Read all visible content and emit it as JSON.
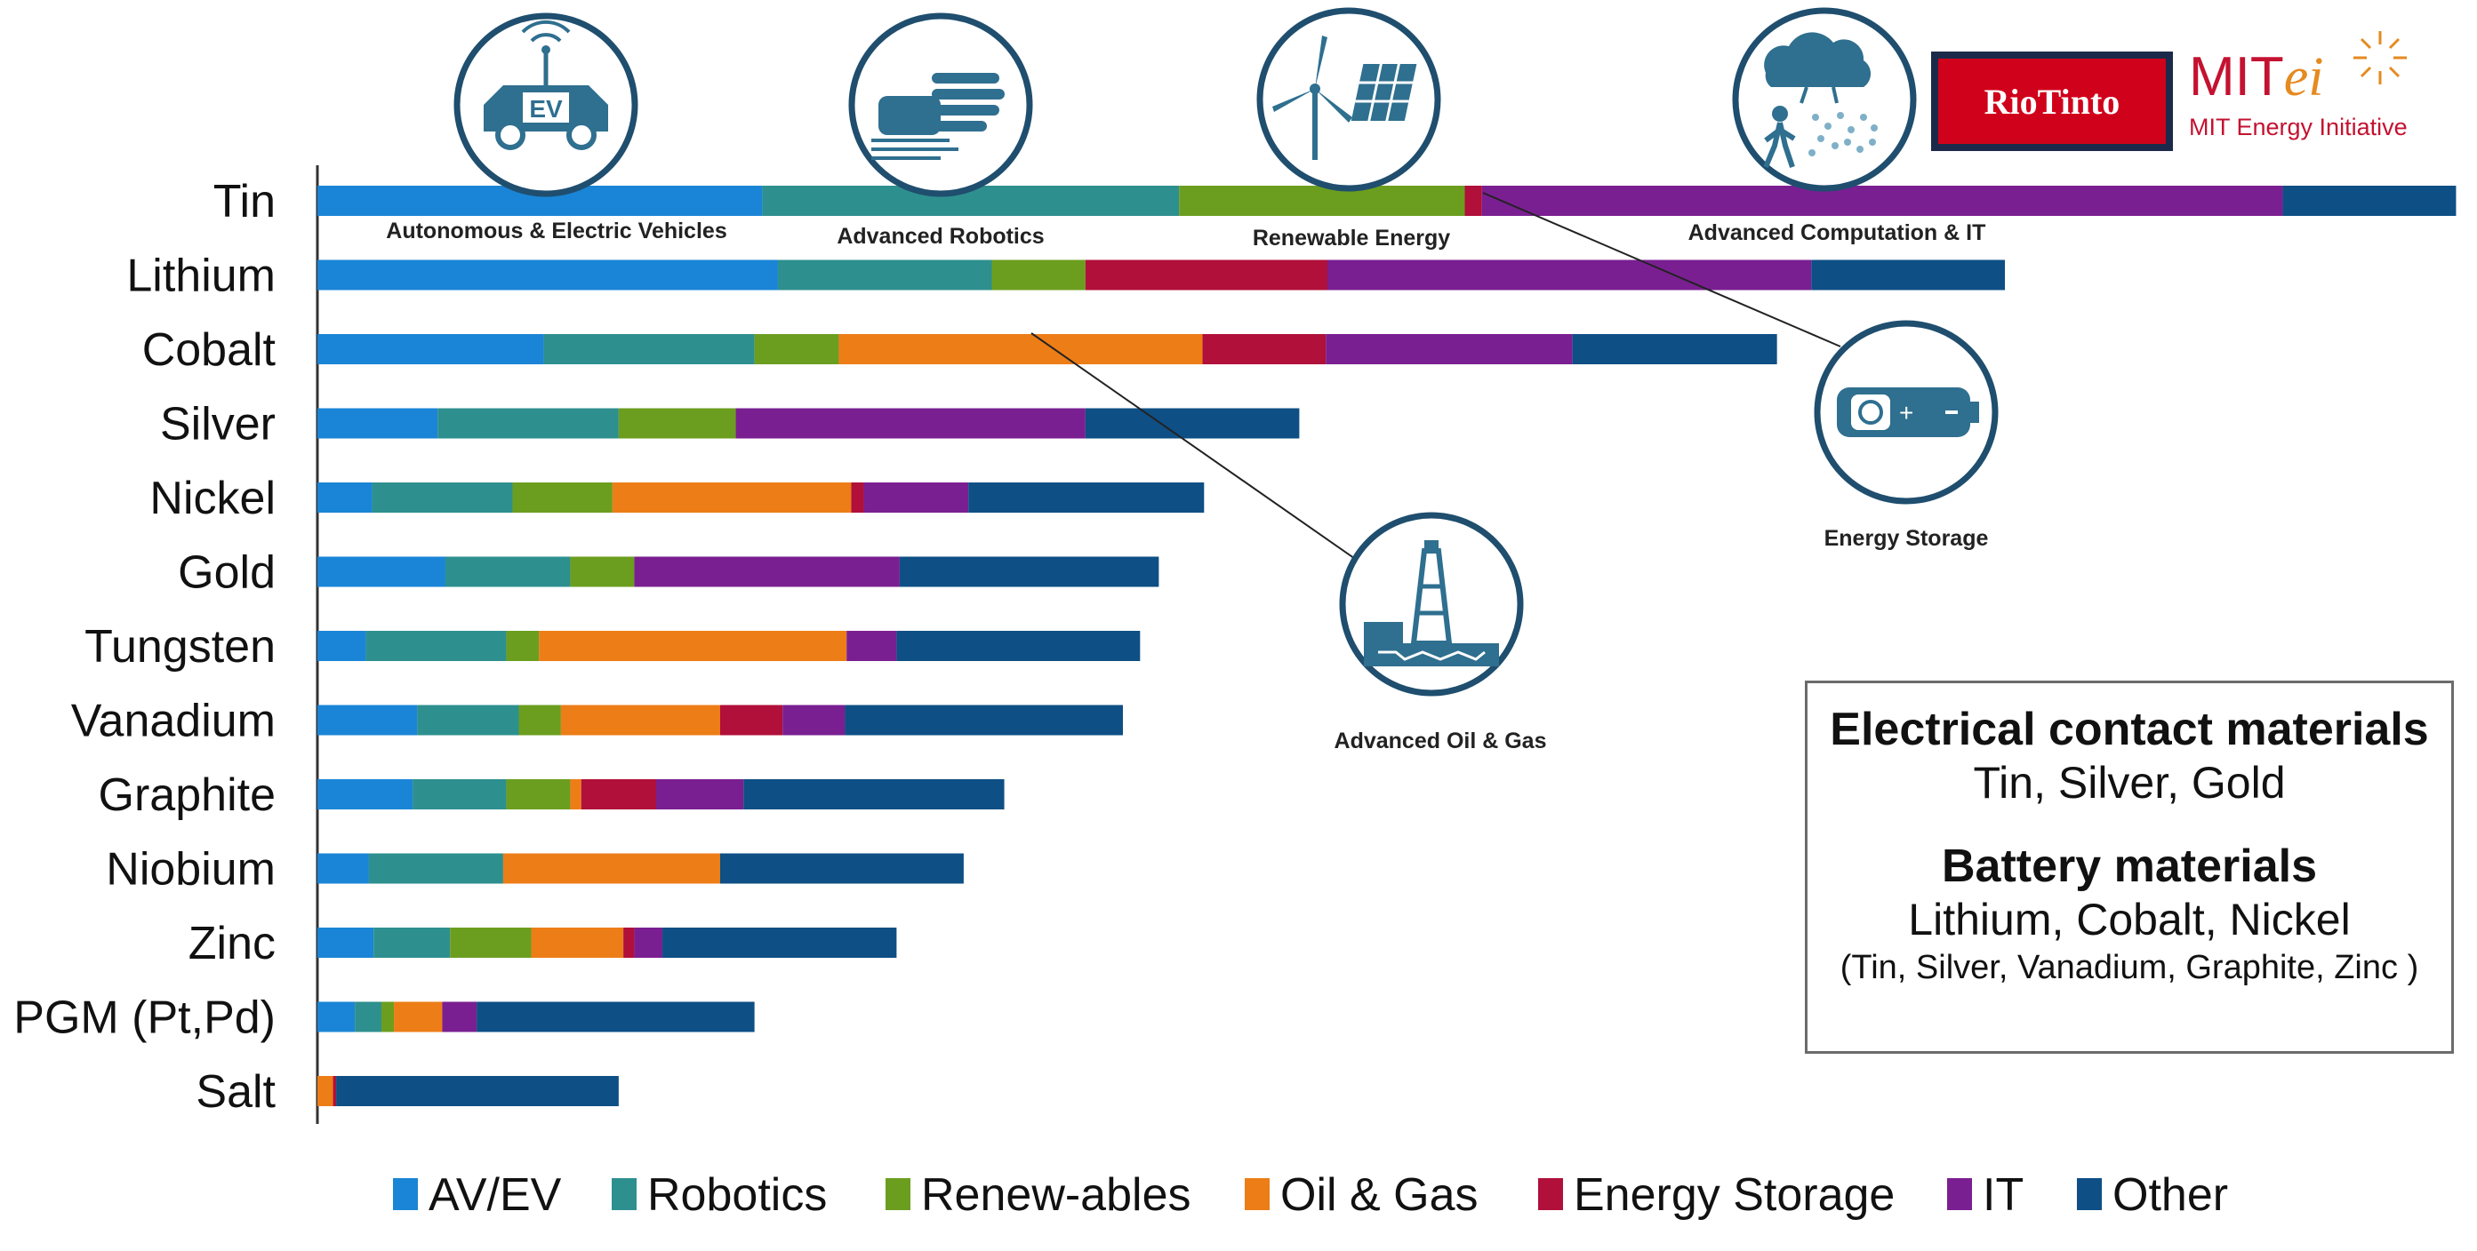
{
  "chart_data": {
    "type": "bar",
    "orientation": "horizontal",
    "stacked": true,
    "categories": [
      "Tin",
      "Lithium",
      "Cobalt",
      "Silver",
      "Nickel",
      "Gold",
      "Tungsten",
      "Vanadium",
      "Graphite",
      "Niobium",
      "Zinc",
      "PGM (Pt,Pd)",
      "Salt"
    ],
    "series": [
      {
        "name": "AV/EV",
        "color": "#1a85d6",
        "values": [
          285,
          295,
          145,
          77,
          35,
          82,
          31,
          64,
          61,
          33,
          36,
          24,
          0
        ]
      },
      {
        "name": "Robotics",
        "color": "#2e8f8f",
        "values": [
          267,
          137,
          135,
          116,
          90,
          80,
          90,
          65,
          60,
          86,
          49,
          17,
          0
        ]
      },
      {
        "name": "Renew-ables",
        "color": "#6b9e1f",
        "values": [
          183,
          60,
          54,
          75,
          64,
          41,
          21,
          27,
          41,
          0,
          52,
          8,
          0
        ]
      },
      {
        "name": "Oil & Gas",
        "color": "#ed7d17",
        "values": [
          0,
          0,
          233,
          0,
          153,
          0,
          197,
          102,
          7,
          139,
          59,
          31,
          10
        ]
      },
      {
        "name": "Energy Storage",
        "color": "#b0103a",
        "values": [
          11,
          155,
          79,
          0,
          8,
          0,
          0,
          40,
          48,
          0,
          7,
          0,
          2
        ]
      },
      {
        "name": "IT",
        "color": "#7a1f91",
        "values": [
          513,
          310,
          158,
          224,
          67,
          170,
          32,
          40,
          56,
          0,
          18,
          22,
          0
        ]
      },
      {
        "name": "Other",
        "color": "#0e4f85",
        "values": [
          111,
          124,
          131,
          137,
          151,
          166,
          156,
          178,
          167,
          156,
          150,
          178,
          181
        ]
      }
    ],
    "xlim": [
      0,
      1380
    ],
    "grid": false,
    "legend_position": "bottom"
  },
  "icons": [
    {
      "caption": "Autonomous & Electric Vehicles",
      "icon": "electric-vehicle-icon",
      "badge": "EV"
    },
    {
      "caption": "Advanced Robotics",
      "icon": "robot-hand-icon"
    },
    {
      "caption": "Renewable Energy",
      "icon": "wind-solar-icon"
    },
    {
      "caption": "Advanced Computation & IT",
      "icon": "cloud-computing-icon"
    },
    {
      "caption": "Energy Storage",
      "icon": "battery-icon"
    },
    {
      "caption": "Advanced Oil & Gas",
      "icon": "oil-rig-icon"
    }
  ],
  "info_box": {
    "heading1": "Electrical contact materials",
    "line1": "Tin, Silver, Gold",
    "heading2": "Battery materials",
    "line2": "Lithium, Cobalt, Nickel",
    "line3": "(Tin, Silver, Vanadium, Graphite, Zinc )"
  },
  "logos": {
    "rio_tinto": "RioTinto",
    "mit_word": "MIT",
    "mit_ei": "ei",
    "mit_sub": "MIT Energy Initiative"
  },
  "colors": {
    "icon_stroke": "#1f4e6e",
    "icon_fill": "#2f6f8f",
    "axis": "#333333"
  }
}
